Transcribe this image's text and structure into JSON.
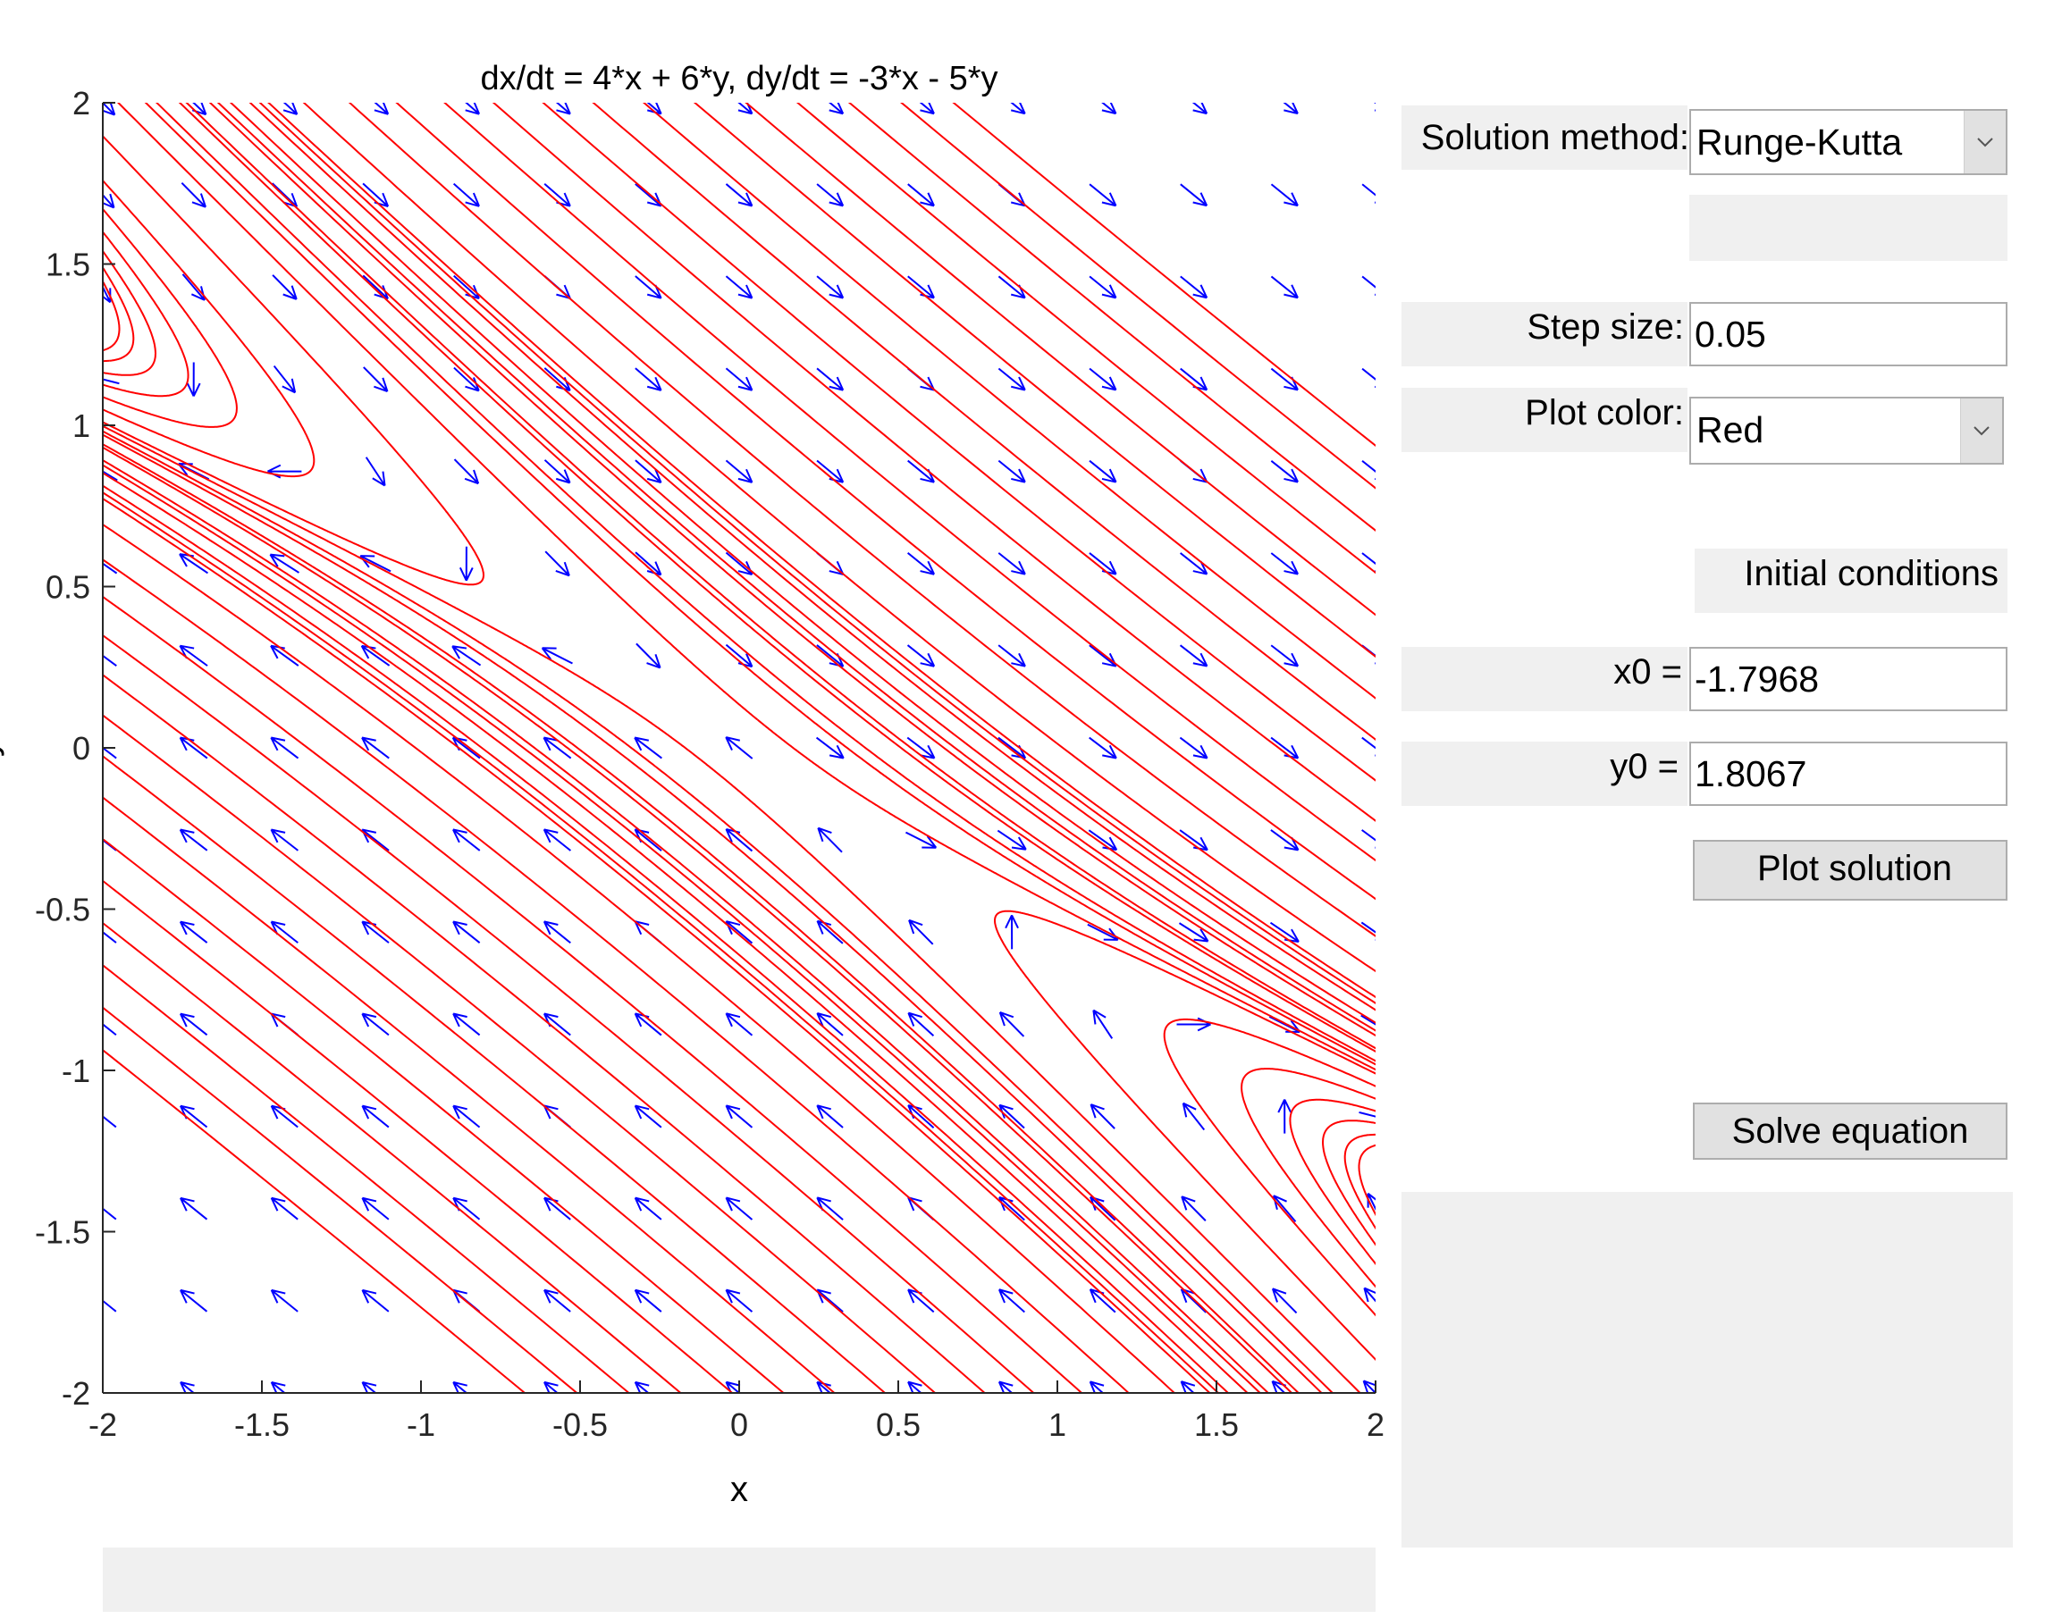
{
  "chart_data": {
    "type": "phase-portrait",
    "title": "dx/dt = 4*x + 6*y, dy/dt = -3*x - 5*y",
    "xlabel": "x",
    "ylabel": "y",
    "xlim": [
      -2,
      2
    ],
    "ylim": [
      -2,
      2
    ],
    "x_ticks": [
      "-2",
      "-1.5",
      "-1",
      "-0.5",
      "0",
      "0.5",
      "1",
      "1.5",
      "2"
    ],
    "y_ticks": [
      "2",
      "1.5",
      "1",
      "0.5",
      "0",
      "-0.5",
      "-1",
      "-1.5",
      "-2"
    ],
    "system": {
      "a": 4,
      "b": 6,
      "c": -3,
      "d": -5
    },
    "field_color": "#0000ff",
    "trajectory_color": "#ff0000"
  },
  "controls": {
    "solution_method_label": "Solution method:",
    "solution_method_value": "Runge-Kutta",
    "step_size_label": "Step size:",
    "step_size_value": "0.05",
    "plot_color_label": "Plot color:",
    "plot_color_value": "Red",
    "initial_conditions_label": "Initial conditions",
    "x0_label": "x0 =",
    "x0_value": "-1.7968",
    "y0_label": "y0 =",
    "y0_value": "1.8067",
    "plot_solution_label": "Plot solution",
    "solve_equation_label": "Solve equation"
  }
}
